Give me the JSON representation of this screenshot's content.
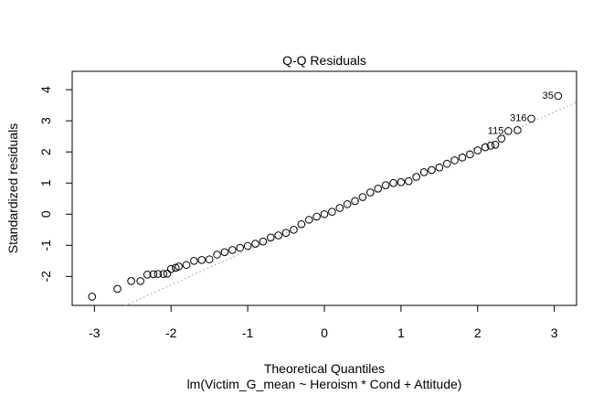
{
  "chart_data": {
    "type": "scatter",
    "title": "Q-Q Residuals",
    "xlabel": "Theoretical Quantiles",
    "subtitle": "lm(Victim_G_mean ~ Heroism * Cond + Attitude)",
    "ylabel": "Standardized residuals",
    "xlim": [
      -3.29,
      3.29
    ],
    "ylim": [
      -2.93,
      4.59
    ],
    "xticks": [
      -3,
      -2,
      -1,
      0,
      1,
      2,
      3
    ],
    "yticks": [
      -2,
      -1,
      0,
      1,
      2,
      3,
      4
    ],
    "grid": false,
    "reference_line": {
      "style": "dotted",
      "color": "#999999",
      "intercept": -0.05,
      "slope": 1.11
    },
    "points": {
      "theoretical": [
        -3.03,
        -2.7,
        -2.52,
        -2.4,
        -2.31,
        -2.23,
        -2.17,
        -2.1,
        -2.05,
        -2.0,
        -1.94,
        -1.9,
        -1.8,
        -1.7,
        -1.6,
        -1.5,
        -1.4,
        -1.3,
        -1.2,
        -1.1,
        -1.0,
        -0.9,
        -0.8,
        -0.7,
        -0.6,
        -0.5,
        -0.4,
        -0.3,
        -0.2,
        -0.1,
        0.0,
        0.1,
        0.2,
        0.3,
        0.4,
        0.5,
        0.6,
        0.7,
        0.8,
        0.9,
        1.0,
        1.1,
        1.2,
        1.3,
        1.4,
        1.5,
        1.6,
        1.7,
        1.8,
        1.9,
        2.0,
        2.1,
        2.17,
        2.23,
        2.31,
        2.4,
        2.52,
        2.7,
        3.05
      ],
      "residual": [
        -2.65,
        -2.4,
        -2.15,
        -2.15,
        -1.94,
        -1.93,
        -1.92,
        -1.92,
        -1.91,
        -1.76,
        -1.72,
        -1.68,
        -1.63,
        -1.5,
        -1.47,
        -1.45,
        -1.3,
        -1.22,
        -1.15,
        -1.08,
        -1.02,
        -0.95,
        -0.88,
        -0.75,
        -0.68,
        -0.6,
        -0.5,
        -0.32,
        -0.18,
        -0.08,
        0.0,
        0.08,
        0.2,
        0.32,
        0.42,
        0.55,
        0.7,
        0.82,
        0.93,
        1.0,
        1.03,
        1.06,
        1.2,
        1.35,
        1.42,
        1.5,
        1.62,
        1.73,
        1.82,
        1.92,
        2.05,
        2.15,
        2.2,
        2.23,
        2.43,
        2.67,
        2.7,
        3.07,
        3.8
      ]
    },
    "point_labels": [
      {
        "label": "115",
        "theoretical": 2.4,
        "residual": 2.67
      },
      {
        "label": "316",
        "theoretical": 2.7,
        "residual": 3.07
      },
      {
        "label": "35",
        "theoretical": 3.05,
        "residual": 3.8
      }
    ]
  }
}
